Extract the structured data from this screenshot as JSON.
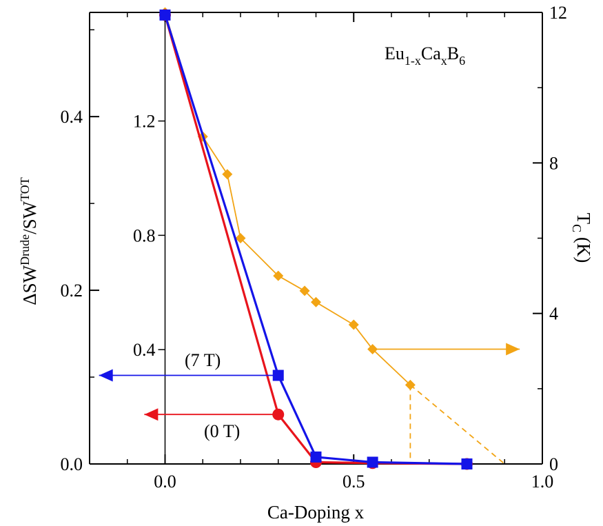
{
  "chart_data": {
    "type": "line",
    "title": "",
    "xlabel": "Ca-Doping x",
    "ylabel": {
      "main": "ΔSW",
      "sup1": "Drude",
      "mid": "/SW",
      "sup2": "TOT"
    },
    "y2label": {
      "main": "T",
      "sub": "C",
      "rest": " (K)"
    },
    "xlim": [
      -0.2,
      1.0
    ],
    "ylim": [
      0,
      0.52
    ],
    "y2lim": [
      0,
      12
    ],
    "xticks": [
      "0.0",
      "0.5",
      "1.0"
    ],
    "yticks": [
      "0.0",
      "0.2",
      "0.4"
    ],
    "y2ticks": [
      "0",
      "4",
      "8",
      "12"
    ],
    "secondary_scale_ticks": [
      "0.4",
      "0.8",
      "1.2"
    ],
    "compound": {
      "a": "Eu",
      "b": "1-x",
      "c": "Ca",
      "d": "x",
      "e": "B",
      "f": "6"
    },
    "series": [
      {
        "name": "(0 T)",
        "color": "#e8141c",
        "marker": "circle",
        "axis": "left",
        "x": [
          0.0,
          0.3,
          0.4,
          0.55,
          0.8
        ],
        "y": [
          0.517,
          0.057,
          0.002,
          0.001,
          0.0
        ]
      },
      {
        "name": "(7 T)",
        "color": "#1414e8",
        "marker": "square",
        "axis": "left",
        "x": [
          0.0,
          0.3,
          0.4,
          0.55,
          0.8
        ],
        "y": [
          0.517,
          0.102,
          0.008,
          0.002,
          0.0
        ]
      },
      {
        "name": "",
        "color": "#f2a414",
        "marker": "diamond",
        "axis": "right",
        "x": [
          0.0,
          0.1,
          0.165,
          0.2,
          0.3,
          0.37,
          0.4,
          0.5,
          0.55,
          0.65
        ],
        "y": [
          12.0,
          8.7,
          7.7,
          6.0,
          5.0,
          4.6,
          4.3,
          3.7,
          3.05,
          2.1
        ]
      }
    ],
    "extrapolation": {
      "color": "#f2a414",
      "x": [
        0.65,
        0.9
      ],
      "y": [
        2.1,
        0.0
      ],
      "drop_x": 0.65
    },
    "axis_arrows": [
      {
        "series": "(7 T)",
        "direction": "left",
        "color": "#1414e8"
      },
      {
        "series": "(0 T)",
        "direction": "left",
        "color": "#e8141c"
      },
      {
        "series": "Tc",
        "direction": "right",
        "color": "#f2a414"
      }
    ]
  }
}
